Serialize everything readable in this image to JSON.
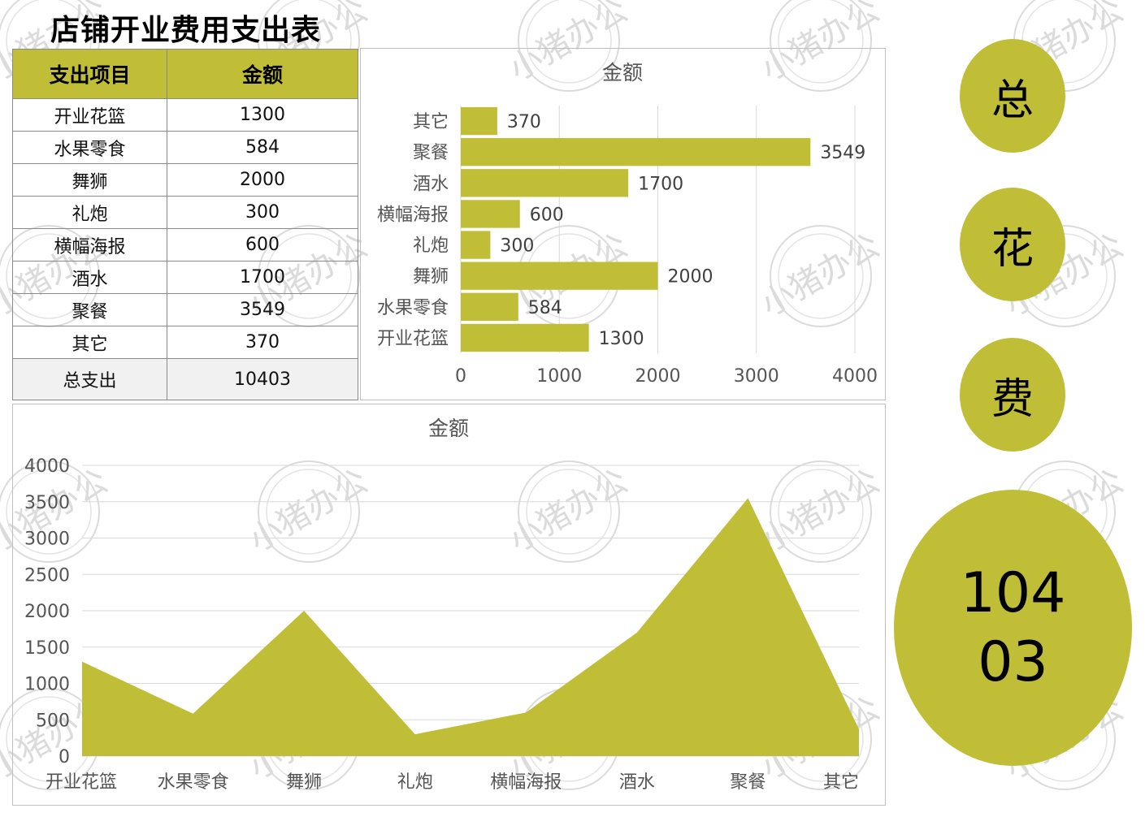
{
  "title": "店铺开业费用支出表",
  "table": {
    "header": {
      "item": "支出项目",
      "amount": "金额"
    },
    "rows": [
      {
        "item": "开业花篮",
        "amount": "1300"
      },
      {
        "item": "水果零食",
        "amount": "584"
      },
      {
        "item": "舞狮",
        "amount": "2000"
      },
      {
        "item": "礼炮",
        "amount": "300"
      },
      {
        "item": "横幅海报",
        "amount": "600"
      },
      {
        "item": "酒水",
        "amount": "1700"
      },
      {
        "item": "聚餐",
        "amount": "3549"
      },
      {
        "item": "其它",
        "amount": "370"
      }
    ],
    "total": {
      "label": "总支出",
      "value": "10403"
    }
  },
  "circles": {
    "c1": "总",
    "c2": "花",
    "c3": "费",
    "total": "10403"
  },
  "watermark": "小猪办公",
  "colors": {
    "accent": "#bfbe36",
    "total_row": "#f1f1f1"
  },
  "chart_data": [
    {
      "type": "bar",
      "orientation": "horizontal",
      "title": "金额",
      "categories": [
        "开业花篮",
        "水果零食",
        "舞狮",
        "礼炮",
        "横幅海报",
        "酒水",
        "聚餐",
        "其它"
      ],
      "values": [
        1300,
        584,
        2000,
        300,
        600,
        1700,
        3549,
        370
      ],
      "xlim": [
        0,
        4000
      ],
      "xticks": [
        0,
        1000,
        2000,
        3000,
        4000
      ],
      "grid": true,
      "data_labels": true
    },
    {
      "type": "area",
      "title": "金额",
      "categories": [
        "开业花篮",
        "水果零食",
        "舞狮",
        "礼炮",
        "横幅海报",
        "酒水",
        "聚餐",
        "其它"
      ],
      "values": [
        1300,
        584,
        2000,
        300,
        600,
        1700,
        3549,
        370
      ],
      "ylim": [
        0,
        4000
      ],
      "yticks": [
        0,
        500,
        1000,
        1500,
        2000,
        2500,
        3000,
        3500,
        4000
      ],
      "grid": true
    }
  ]
}
